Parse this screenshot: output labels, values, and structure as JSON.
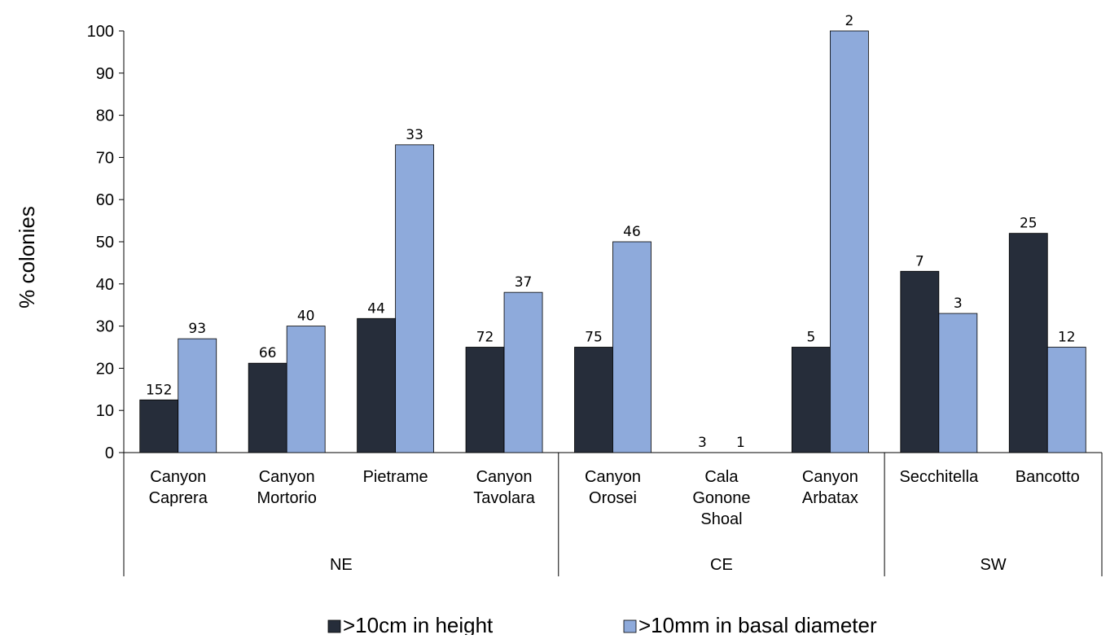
{
  "chart_data": {
    "type": "bar",
    "ylabel": "% colonies",
    "xlabel": "",
    "ylim": [
      0,
      100
    ],
    "yticks": [
      0,
      10,
      20,
      30,
      40,
      50,
      60,
      70,
      80,
      90,
      100
    ],
    "grid": false,
    "legend_position": "bottom",
    "categories": [
      [
        "Canyon",
        "Caprera"
      ],
      [
        "Canyon",
        "Mortorio"
      ],
      [
        "Pietrame"
      ],
      [
        "Canyon",
        "Tavolara"
      ],
      [
        "Canyon",
        "Orosei"
      ],
      [
        "Cala",
        "Gonone",
        "Shoal"
      ],
      [
        "Canyon",
        "Arbatax"
      ],
      [
        "Secchitella"
      ],
      [
        "Bancotto"
      ]
    ],
    "groups": [
      {
        "label": "NE",
        "categories": 4
      },
      {
        "label": "CE",
        "categories": 3
      },
      {
        "label": "SW",
        "categories": 2
      }
    ],
    "series": [
      {
        "name": ">10cm in height",
        "color": "#262d3a",
        "values": [
          12.5,
          21.2,
          31.8,
          25,
          25,
          0,
          25,
          43,
          52
        ],
        "labels": [
          "152",
          "66",
          "44",
          "72",
          "75",
          "3",
          "5",
          "7",
          "25"
        ]
      },
      {
        "name": ">10mm in basal diameter",
        "color": "#8eaadb",
        "values": [
          27,
          30,
          73,
          38,
          50,
          0,
          100,
          33,
          25
        ],
        "labels": [
          "93",
          "40",
          "33",
          "37",
          "46",
          "1",
          "2",
          "3",
          "12"
        ]
      }
    ]
  }
}
